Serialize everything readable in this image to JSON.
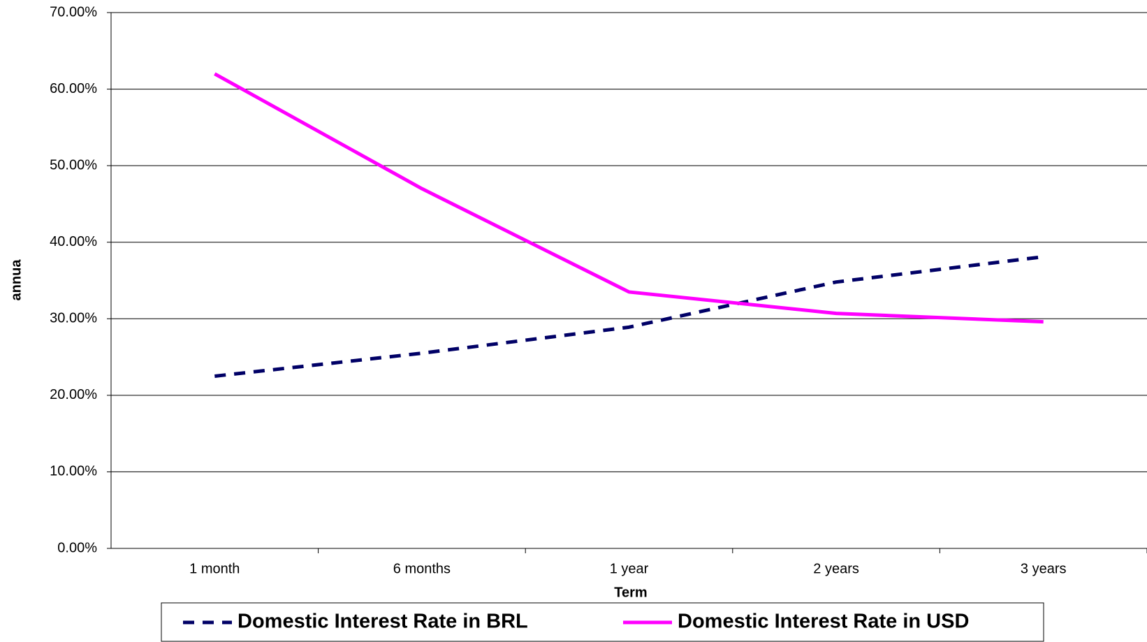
{
  "chart_data": {
    "type": "line",
    "x_label": "Term",
    "y_label": "annua",
    "categories": [
      "1 month",
      "6 months",
      "1 year",
      "2 years",
      "3 years"
    ],
    "series": [
      {
        "name": "Domestic Interest Rate in BRL",
        "color": "#000066",
        "dash": true,
        "values": [
          22.5,
          25.5,
          28.9,
          34.8,
          38.1
        ]
      },
      {
        "name": "Domestic Interest Rate in USD",
        "color": "#ff00ff",
        "dash": false,
        "values": [
          62.0,
          47.0,
          33.5,
          30.7,
          29.6
        ]
      }
    ],
    "ylim": [
      0,
      70
    ],
    "yticks": [
      {
        "value": 0,
        "label": "0.00%"
      },
      {
        "value": 10,
        "label": "10.00%"
      },
      {
        "value": 20,
        "label": "20.00%"
      },
      {
        "value": 30,
        "label": "30.00%"
      },
      {
        "value": 40,
        "label": "40.00%"
      },
      {
        "value": 50,
        "label": "50.00%"
      },
      {
        "value": 60,
        "label": "60.00%"
      },
      {
        "value": 70,
        "label": "70.00%"
      }
    ],
    "grid": true
  }
}
